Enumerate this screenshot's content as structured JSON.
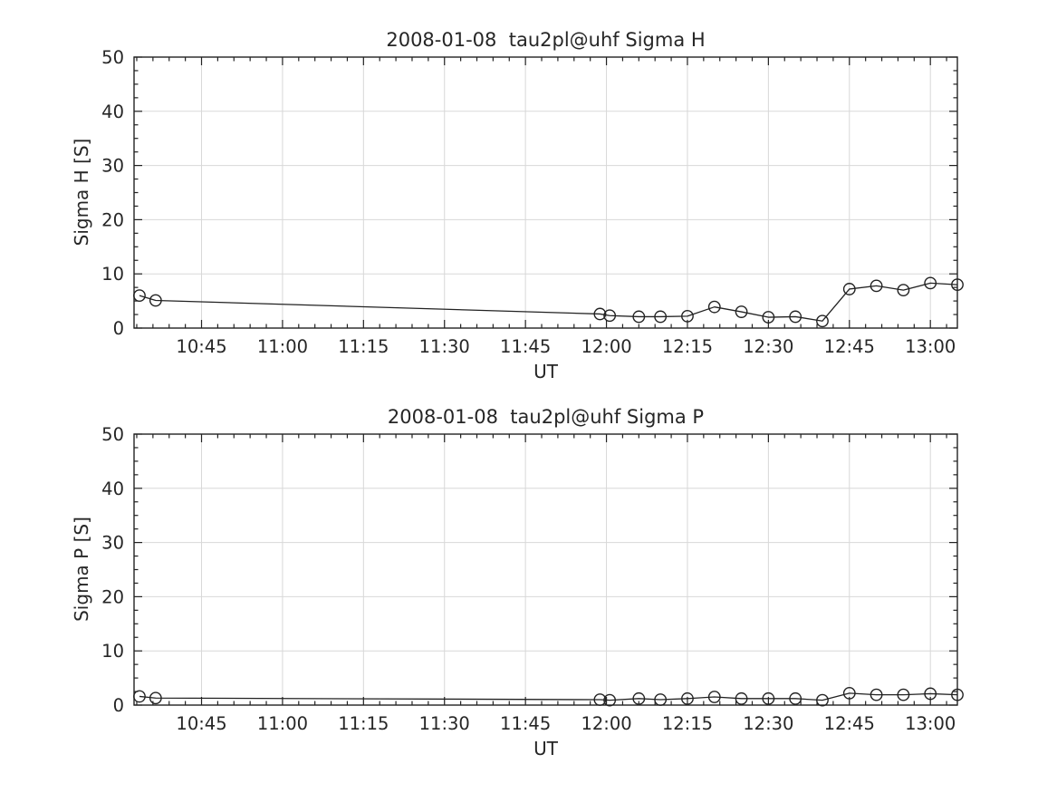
{
  "figure": {
    "background": "#ffffff",
    "frame_color": "#222222",
    "grid_color": "#d8d8d8",
    "text_color": "#262626"
  },
  "chart_data": [
    {
      "type": "line",
      "title": "2008-01-08  tau2pl@uhf Sigma H",
      "xlabel": "UT",
      "ylabel": "Sigma H [S]",
      "ylim": [
        0,
        50
      ],
      "yticks": [
        {
          "value": 0,
          "label": "0"
        },
        {
          "value": 10,
          "label": "10"
        },
        {
          "value": 20,
          "label": "20"
        },
        {
          "value": 30,
          "label": "30"
        },
        {
          "value": 40,
          "label": "40"
        },
        {
          "value": 50,
          "label": "50"
        }
      ],
      "xlim_minutes": [
        632.5,
        785
      ],
      "xticks": [
        {
          "minute": 645,
          "label": "10:45"
        },
        {
          "minute": 660,
          "label": "11:00"
        },
        {
          "minute": 675,
          "label": "11:15"
        },
        {
          "minute": 690,
          "label": "11:30"
        },
        {
          "minute": 705,
          "label": "11:45"
        },
        {
          "minute": 720,
          "label": "12:00"
        },
        {
          "minute": 735,
          "label": "12:15"
        },
        {
          "minute": 750,
          "label": "12:30"
        },
        {
          "minute": 765,
          "label": "12:45"
        },
        {
          "minute": 780,
          "label": "13:00"
        }
      ],
      "x_minor_step_minutes": 3,
      "y_minor_step": 2.5,
      "grid": true,
      "legend": null,
      "marker": "open-circle",
      "line_color": "#222222",
      "points": [
        {
          "ut": "10:33",
          "minute": 633.5,
          "value": 6.0
        },
        {
          "ut": "10:36",
          "minute": 636.5,
          "value": 5.1
        },
        {
          "ut": "11:59",
          "minute": 718.8,
          "value": 2.6
        },
        {
          "ut": "12:01",
          "minute": 720.6,
          "value": 2.3
        },
        {
          "ut": "12:06",
          "minute": 726,
          "value": 2.1
        },
        {
          "ut": "12:10",
          "minute": 730,
          "value": 2.1
        },
        {
          "ut": "12:15",
          "minute": 735,
          "value": 2.2
        },
        {
          "ut": "12:20",
          "minute": 740,
          "value": 3.9
        },
        {
          "ut": "12:25",
          "minute": 745,
          "value": 3.0
        },
        {
          "ut": "12:30",
          "minute": 750,
          "value": 2.0
        },
        {
          "ut": "12:35",
          "minute": 755,
          "value": 2.1
        },
        {
          "ut": "12:40",
          "minute": 760,
          "value": 1.3
        },
        {
          "ut": "12:45",
          "minute": 765,
          "value": 7.2
        },
        {
          "ut": "12:50",
          "minute": 770,
          "value": 7.8
        },
        {
          "ut": "12:55",
          "minute": 775,
          "value": 7.0
        },
        {
          "ut": "13:00",
          "minute": 780,
          "value": 8.3
        },
        {
          "ut": "13:05",
          "minute": 785,
          "value": 8.0
        }
      ]
    },
    {
      "type": "line",
      "title": "2008-01-08  tau2pl@uhf Sigma P",
      "xlabel": "UT",
      "ylabel": "Sigma P [S]",
      "ylim": [
        0,
        50
      ],
      "yticks": [
        {
          "value": 0,
          "label": "0"
        },
        {
          "value": 10,
          "label": "10"
        },
        {
          "value": 20,
          "label": "20"
        },
        {
          "value": 30,
          "label": "30"
        },
        {
          "value": 40,
          "label": "40"
        },
        {
          "value": 50,
          "label": "50"
        }
      ],
      "xlim_minutes": [
        632.5,
        785
      ],
      "xticks": [
        {
          "minute": 645,
          "label": "10:45"
        },
        {
          "minute": 660,
          "label": "11:00"
        },
        {
          "minute": 675,
          "label": "11:15"
        },
        {
          "minute": 690,
          "label": "11:30"
        },
        {
          "minute": 705,
          "label": "11:45"
        },
        {
          "minute": 720,
          "label": "12:00"
        },
        {
          "minute": 735,
          "label": "12:15"
        },
        {
          "minute": 750,
          "label": "12:30"
        },
        {
          "minute": 765,
          "label": "12:45"
        },
        {
          "minute": 780,
          "label": "13:00"
        }
      ],
      "x_minor_step_minutes": 3,
      "y_minor_step": 2.5,
      "grid": true,
      "legend": null,
      "marker": "open-circle",
      "line_color": "#222222",
      "points": [
        {
          "ut": "10:33",
          "minute": 633.5,
          "value": 1.6
        },
        {
          "ut": "10:36",
          "minute": 636.5,
          "value": 1.3
        },
        {
          "ut": "11:59",
          "minute": 718.8,
          "value": 1.0
        },
        {
          "ut": "12:01",
          "minute": 720.6,
          "value": 0.9
        },
        {
          "ut": "12:06",
          "minute": 726,
          "value": 1.2
        },
        {
          "ut": "12:10",
          "minute": 730,
          "value": 1.0
        },
        {
          "ut": "12:15",
          "minute": 735,
          "value": 1.2
        },
        {
          "ut": "12:20",
          "minute": 740,
          "value": 1.5
        },
        {
          "ut": "12:25",
          "minute": 745,
          "value": 1.2
        },
        {
          "ut": "12:30",
          "minute": 750,
          "value": 1.2
        },
        {
          "ut": "12:35",
          "minute": 755,
          "value": 1.2
        },
        {
          "ut": "12:40",
          "minute": 760,
          "value": 0.9
        },
        {
          "ut": "12:45",
          "minute": 765,
          "value": 2.2
        },
        {
          "ut": "12:50",
          "minute": 770,
          "value": 1.9
        },
        {
          "ut": "12:55",
          "minute": 775,
          "value": 1.9
        },
        {
          "ut": "13:00",
          "minute": 780,
          "value": 2.1
        },
        {
          "ut": "13:05",
          "minute": 785,
          "value": 1.9
        }
      ]
    }
  ]
}
